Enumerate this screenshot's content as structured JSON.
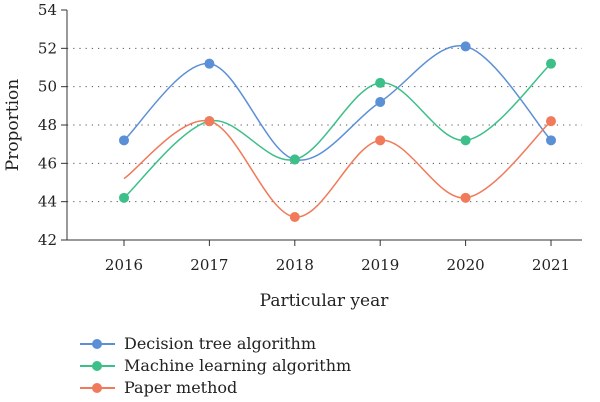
{
  "chart_data": {
    "type": "line",
    "xlabel": "Particular year",
    "ylabel": "Proportion",
    "categories": [
      "2016",
      "2017",
      "2018",
      "2019",
      "2020",
      "2021"
    ],
    "ylim": [
      42,
      54
    ],
    "yticks": [
      42,
      44,
      46,
      48,
      50,
      52,
      54
    ],
    "grid": "horizontal dotted",
    "legend_position": "bottom-left",
    "series": [
      {
        "name": "Decision tree algorithm",
        "color": "#5b8fd6",
        "values": [
          47.2,
          51.2,
          46.2,
          49.2,
          52.1,
          47.2
        ]
      },
      {
        "name": "Machine learning algorithm",
        "color": "#3dbf8a",
        "values": [
          44.2,
          48.2,
          46.2,
          50.2,
          47.2,
          51.2
        ]
      },
      {
        "name": "Paper method",
        "color": "#f07a5a",
        "values": [
          45.2,
          48.2,
          43.2,
          47.2,
          44.2,
          48.2
        ],
        "marker_from": 1
      }
    ]
  }
}
